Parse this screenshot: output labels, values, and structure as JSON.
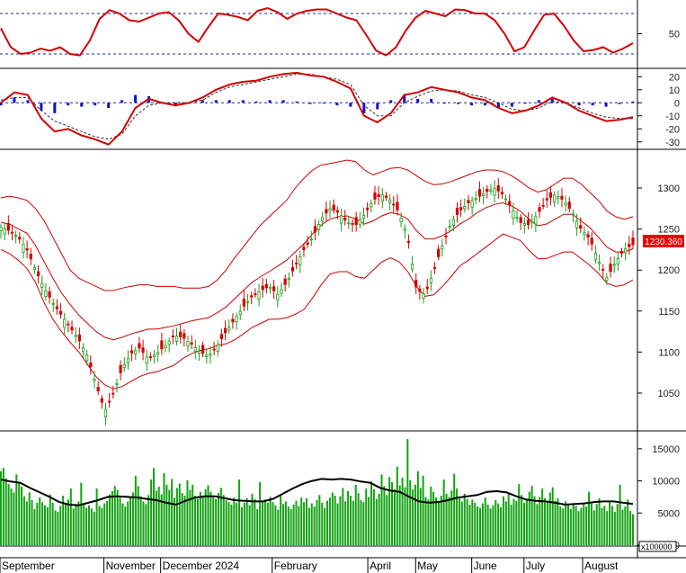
{
  "price_badge": "1230.360",
  "volume_unit": "x100000",
  "chart_data": [
    {
      "type": "line",
      "panel": "rsi",
      "ylim": [
        0,
        100
      ],
      "y_ticks": [
        50
      ],
      "reference_lines": [
        80,
        20
      ],
      "series": [
        {
          "values": [
            58,
            30,
            20,
            22,
            28,
            25,
            30,
            20,
            18,
            40,
            72,
            85,
            80,
            70,
            68,
            74,
            80,
            82,
            70,
            50,
            38,
            60,
            80,
            78,
            75,
            70,
            84,
            88,
            82,
            72,
            80,
            84,
            86,
            86,
            80,
            74,
            70,
            48,
            25,
            18,
            30,
            55,
            74,
            84,
            80,
            76,
            86,
            85,
            80,
            80,
            70,
            50,
            24,
            30,
            55,
            78,
            80,
            62,
            40,
            24,
            26,
            30,
            22,
            28,
            36
          ]
        }
      ]
    },
    {
      "type": "line",
      "panel": "macd",
      "ylim": [
        -35,
        25
      ],
      "y_ticks": [
        20,
        10,
        0,
        -10,
        -20,
        -30
      ],
      "series": [
        {
          "values": [
            0,
            8,
            6,
            -12,
            -22,
            -20,
            -25,
            -28,
            -32,
            -22,
            -4,
            3,
            0,
            -2,
            0,
            4,
            10,
            14,
            16,
            17,
            20,
            22,
            23,
            21,
            20,
            16,
            11,
            -10,
            -15,
            -8,
            6,
            8,
            12,
            10,
            8,
            4,
            2,
            -4,
            -8,
            -6,
            -2,
            4,
            0,
            -6,
            -10,
            -14,
            -13,
            -11
          ]
        },
        {
          "values": [
            2,
            4,
            4,
            -6,
            -14,
            -18,
            -22,
            -26,
            -28,
            -24,
            -10,
            -2,
            0,
            0,
            0,
            2,
            8,
            12,
            14,
            16,
            18,
            20,
            22,
            22,
            20,
            18,
            14,
            -2,
            -10,
            -10,
            0,
            5,
            9,
            10,
            9,
            6,
            4,
            0,
            -5,
            -6,
            -4,
            1,
            0,
            -4,
            -8,
            -11,
            -12,
            -12
          ]
        },
        {
          "values": [
            -2,
            4,
            2,
            -6,
            -8,
            -2,
            -3,
            -2,
            -4,
            2,
            6,
            5,
            0,
            -2,
            0,
            2,
            2,
            2,
            2,
            1,
            2,
            2,
            1,
            -1,
            0,
            -2,
            -3,
            -8,
            -5,
            2,
            6,
            3,
            3,
            0,
            -1,
            -2,
            -2,
            -4,
            -3,
            0,
            2,
            3,
            0,
            -2,
            -2,
            -3,
            -1,
            1
          ]
        }
      ]
    },
    {
      "type": "line",
      "panel": "price",
      "ylim": [
        1005,
        1345
      ],
      "y_ticks": [
        1300,
        1250,
        1200,
        1150,
        1100,
        1050
      ],
      "x_tick_labels": [
        "September",
        "November",
        "December 2024",
        "February",
        "April",
        "May",
        "June",
        "July",
        "August"
      ],
      "series": [
        {
          "values": [
            1252,
            1248,
            1240,
            1225,
            1200,
            1178,
            1160,
            1145,
            1130,
            1115,
            1095,
            1060,
            1028,
            1050,
            1080,
            1098,
            1105,
            1092,
            1098,
            1108,
            1120,
            1118,
            1110,
            1100,
            1095,
            1108,
            1125,
            1140,
            1155,
            1168,
            1175,
            1180,
            1170,
            1185,
            1205,
            1225,
            1240,
            1262,
            1275,
            1270,
            1258,
            1255,
            1268,
            1285,
            1292,
            1285,
            1270,
            1240,
            1176,
            1170,
            1200,
            1230,
            1258,
            1272,
            1282,
            1288,
            1295,
            1300,
            1292,
            1275,
            1258,
            1255,
            1268,
            1285,
            1292,
            1285,
            1270,
            1250,
            1238,
            1212,
            1190,
            1210,
            1225,
            1231
          ]
        },
        {
          "values": [
            1258,
            1256,
            1250,
            1245,
            1230,
            1210,
            1190,
            1172,
            1158,
            1145,
            1135,
            1125,
            1118,
            1115,
            1118,
            1122,
            1125,
            1128,
            1128,
            1130,
            1132,
            1135,
            1138,
            1140,
            1142,
            1148,
            1155,
            1165,
            1175,
            1185,
            1192,
            1198,
            1205,
            1212,
            1222,
            1232,
            1244,
            1255,
            1262,
            1265,
            1266,
            1262,
            1256,
            1260,
            1266,
            1270,
            1268,
            1262,
            1248,
            1238,
            1238,
            1242,
            1248,
            1256,
            1262,
            1270,
            1276,
            1280,
            1282,
            1278,
            1272,
            1262,
            1254,
            1256,
            1262,
            1268,
            1268,
            1260,
            1252,
            1240,
            1228,
            1222,
            1222,
            1226
          ]
        },
        {
          "values": [
            1288,
            1290,
            1288,
            1285,
            1275,
            1260,
            1240,
            1220,
            1200,
            1190,
            1185,
            1180,
            1175,
            1175,
            1178,
            1180,
            1182,
            1182,
            1180,
            1180,
            1180,
            1178,
            1178,
            1178,
            1180,
            1188,
            1200,
            1215,
            1228,
            1242,
            1255,
            1265,
            1275,
            1285,
            1300,
            1312,
            1322,
            1328,
            1330,
            1332,
            1334,
            1332,
            1322,
            1316,
            1320,
            1324,
            1325,
            1322,
            1315,
            1308,
            1304,
            1305,
            1308,
            1312,
            1316,
            1320,
            1322,
            1322,
            1320,
            1315,
            1308,
            1300,
            1295,
            1298,
            1305,
            1312,
            1312,
            1305,
            1295,
            1285,
            1272,
            1265,
            1262,
            1265
          ]
        },
        {
          "values": [
            1225,
            1220,
            1212,
            1202,
            1185,
            1160,
            1140,
            1125,
            1112,
            1100,
            1085,
            1070,
            1060,
            1055,
            1058,
            1064,
            1070,
            1074,
            1076,
            1080,
            1084,
            1092,
            1098,
            1102,
            1104,
            1108,
            1110,
            1115,
            1122,
            1130,
            1135,
            1140,
            1140,
            1142,
            1146,
            1152,
            1166,
            1182,
            1195,
            1198,
            1198,
            1192,
            1190,
            1200,
            1210,
            1215,
            1210,
            1198,
            1180,
            1168,
            1170,
            1180,
            1192,
            1205,
            1212,
            1220,
            1228,
            1236,
            1244,
            1240,
            1236,
            1224,
            1214,
            1214,
            1218,
            1222,
            1222,
            1214,
            1206,
            1196,
            1184,
            1180,
            1182,
            1188
          ]
        }
      ]
    },
    {
      "type": "bar",
      "panel": "volume",
      "ylim": [
        0,
        17500
      ],
      "y_ticks": [
        15000,
        10000,
        5000,
        0
      ],
      "values": [
        11500,
        12000,
        10400,
        9500,
        8800,
        8200,
        11000,
        9600,
        9100,
        7600,
        6800,
        8200,
        7000,
        5600,
        6600,
        7400,
        6700,
        6200,
        5900,
        7900,
        6600,
        5400,
        5200,
        6100,
        7700,
        6600,
        7100,
        8800,
        5700,
        6400,
        6800,
        9700,
        6400,
        5800,
        6200,
        5700,
        5200,
        8800,
        6100,
        5800,
        6500,
        6900,
        7900,
        8400,
        9200,
        8600,
        7400,
        6500,
        6000,
        6800,
        7600,
        8200,
        10800,
        9200,
        7600,
        6800,
        6400,
        7800,
        10200,
        12000,
        8500,
        9100,
        7900,
        11200,
        9400,
        8600,
        10300,
        7400,
        8900,
        9600,
        8100,
        7700,
        10100,
        8600,
        9400,
        7700,
        7200,
        8300,
        7600,
        8700,
        9300,
        8300,
        7400,
        7200,
        8100,
        8900,
        7800,
        7000,
        6700,
        6300,
        7400,
        6600,
        10200,
        5900,
        6600,
        7300,
        6200,
        8000,
        7200,
        5600,
        9800,
        6800,
        7100,
        6600,
        7500,
        6700,
        6200,
        5500,
        7900,
        6400,
        6800,
        6000,
        5600,
        6300,
        6900,
        6100,
        7400,
        6700,
        7300,
        5800,
        6500,
        6000,
        7000,
        7800,
        6600,
        5800,
        6900,
        7400,
        8200,
        7700,
        6500,
        7600,
        8900,
        6800,
        8400,
        7700,
        6900,
        9400,
        8100,
        7000,
        6700,
        8800,
        7500,
        9900,
        8700,
        7200,
        8000,
        11000,
        9200,
        7800,
        10600,
        9800,
        8700,
        12200,
        9300,
        10500,
        9000,
        16500,
        10100,
        8700,
        9400,
        11500,
        8900,
        10800,
        7500,
        7100,
        9100,
        8300,
        7400,
        6900,
        7700,
        10200,
        8000,
        7500,
        8500,
        11100,
        8800,
        7300,
        6800,
        8000,
        7200,
        6300,
        7100,
        6600,
        6000,
        5800,
        6500,
        7400,
        6300,
        5700,
        6200,
        7000,
        6500,
        5900,
        7600,
        6800,
        8200,
        6300,
        7200,
        6900,
        9500,
        7800,
        6600,
        7000,
        8300,
        9200,
        7600,
        6400,
        7500,
        8800,
        7300,
        6800,
        8200,
        9000,
        6900,
        7300,
        6000,
        5700,
        6800,
        6400,
        5600,
        6300,
        6100,
        5300,
        5800,
        6600,
        6000,
        8300,
        6600,
        5400,
        6400,
        7300,
        5800,
        6100,
        5300,
        6800,
        6100,
        5200,
        6400,
        9400,
        5500,
        6000,
        7100,
        5300,
        4800
      ]
    },
    {
      "type": "line",
      "panel": "volume",
      "series": [
        {
          "values": [
            10200,
            9900,
            9700,
            8900,
            8200,
            7500,
            6700,
            6300,
            6200,
            6600,
            7000,
            7500,
            7600,
            7500,
            7400,
            7200,
            7000,
            6600,
            6300,
            6900,
            7400,
            7600,
            7600,
            7300,
            7000,
            6900,
            6800,
            6800,
            7200,
            8000,
            8800,
            9500,
            10000,
            10300,
            10200,
            10300,
            10200,
            9900,
            9700,
            8900,
            8500,
            8300,
            7500,
            6800,
            6600,
            6700,
            7000,
            7400,
            7600,
            7800,
            8300,
            8400,
            8200,
            7600,
            7100,
            6900,
            6800,
            6600,
            6300,
            6400,
            6500,
            6700,
            6800,
            6800,
            6600,
            6400
          ]
        }
      ]
    }
  ]
}
